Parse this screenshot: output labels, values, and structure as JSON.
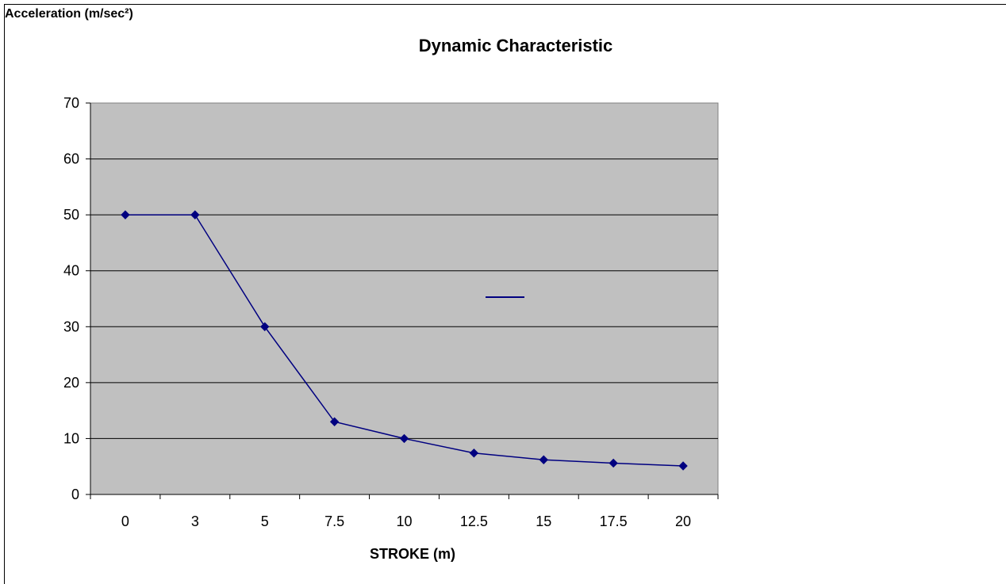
{
  "chart_data": {
    "type": "line",
    "title": "Dynamic Characteristic",
    "xlabel": "STROKE  (m)",
    "ylabel": "Acceleration (m/sec²)",
    "categories": [
      "0",
      "3",
      "5",
      "7.5",
      "10",
      "12.5",
      "15",
      "17.5",
      "20"
    ],
    "series": [
      {
        "values": [
          50,
          50,
          30,
          13,
          10,
          7.4,
          6.2,
          5.6,
          5.1
        ],
        "color": "#000080",
        "marker": "diamond"
      }
    ],
    "ylim": [
      0,
      70
    ],
    "yticks": [
      0,
      10,
      20,
      30,
      40,
      50,
      60,
      70
    ],
    "grid": true,
    "plot_background": "#c0c0c0",
    "legend": "right (empty label)"
  }
}
